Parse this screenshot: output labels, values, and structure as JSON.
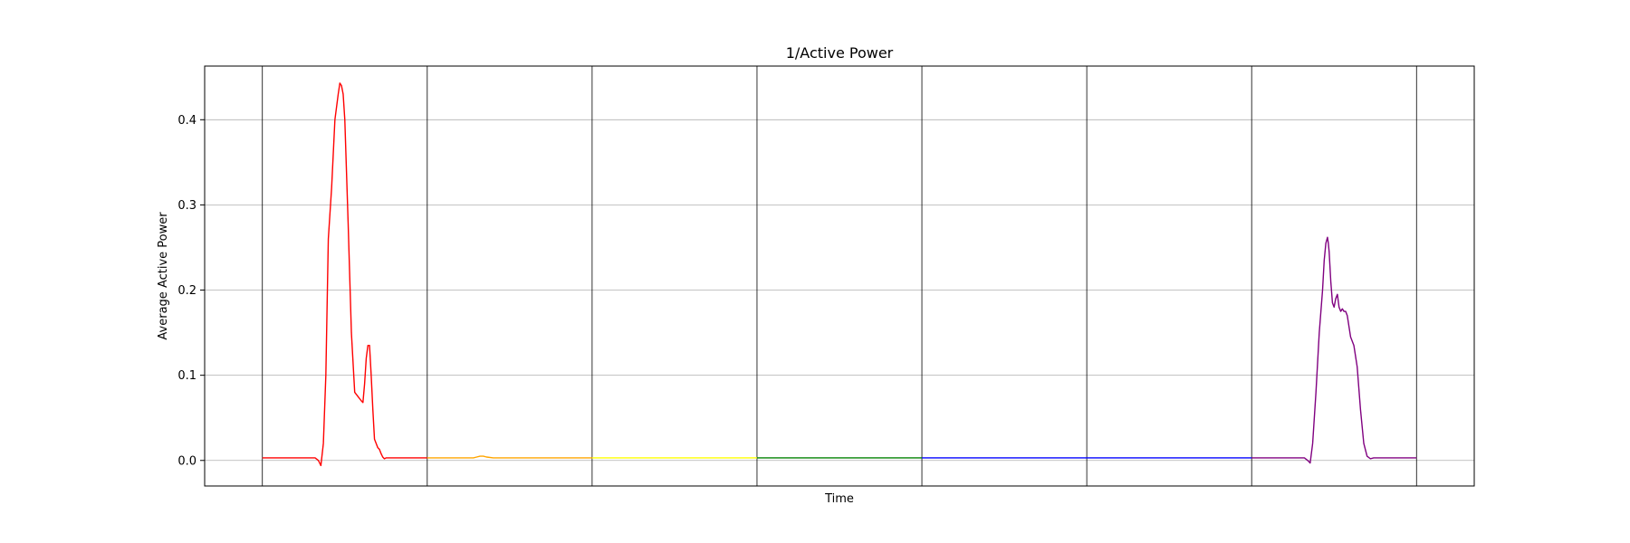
{
  "chart_data": {
    "type": "line",
    "title": "1/Active Power",
    "xlabel": "Time",
    "ylabel": "Average Active Power",
    "ylim": [
      -0.03,
      0.463
    ],
    "yticks": [
      0.0,
      0.1,
      0.2,
      0.3,
      0.4
    ],
    "ytick_labels": [
      "0.0",
      "0.1",
      "0.2",
      "0.3",
      "0.4"
    ],
    "xlim": [
      -0.35,
      7.35
    ],
    "segment_boundaries": [
      0,
      1,
      2,
      3,
      4,
      5,
      6,
      7
    ],
    "grid": true,
    "series": [
      {
        "color": "#ff0000",
        "x": [
          0,
          0.2,
          0.32,
          0.34,
          0.355,
          0.37,
          0.385,
          0.4,
          0.42,
          0.44,
          0.46,
          0.47,
          0.48,
          0.49,
          0.5,
          0.52,
          0.54,
          0.56,
          0.58,
          0.6,
          0.61,
          0.62,
          0.63,
          0.64,
          0.65,
          0.66,
          0.67,
          0.68,
          0.7,
          0.71,
          0.72,
          0.73,
          0.74,
          0.75,
          0.76,
          0.78,
          0.8,
          0.9,
          1.0
        ],
        "y": [
          0.003,
          0.003,
          0.003,
          0.0,
          -0.006,
          0.02,
          0.1,
          0.26,
          0.32,
          0.4,
          0.43,
          0.443,
          0.44,
          0.43,
          0.4,
          0.28,
          0.15,
          0.08,
          0.075,
          0.07,
          0.068,
          0.09,
          0.12,
          0.135,
          0.135,
          0.1,
          0.06,
          0.025,
          0.015,
          0.013,
          0.008,
          0.004,
          0.002,
          0.003,
          0.003,
          0.003,
          0.003,
          0.003,
          0.003
        ]
      },
      {
        "color": "#ffa500",
        "x": [
          1.0,
          1.2,
          1.28,
          1.3,
          1.32,
          1.34,
          1.36,
          1.4,
          1.6,
          1.8,
          2.0
        ],
        "y": [
          0.003,
          0.003,
          0.003,
          0.004,
          0.005,
          0.005,
          0.004,
          0.003,
          0.003,
          0.003,
          0.003
        ]
      },
      {
        "color": "#ffff00",
        "x": [
          2.0,
          2.5,
          3.0
        ],
        "y": [
          0.003,
          0.003,
          0.003
        ]
      },
      {
        "color": "#008000",
        "x": [
          3.0,
          3.5,
          4.0
        ],
        "y": [
          0.003,
          0.003,
          0.003
        ]
      },
      {
        "color": "#0000ff",
        "x": [
          4.0,
          5.0,
          6.0
        ],
        "y": [
          0.003,
          0.003,
          0.003
        ]
      },
      {
        "color": "#800080",
        "x": [
          6.0,
          6.2,
          6.32,
          6.34,
          6.355,
          6.37,
          6.39,
          6.41,
          6.43,
          6.44,
          6.45,
          6.46,
          6.465,
          6.47,
          6.48,
          6.49,
          6.5,
          6.51,
          6.52,
          6.53,
          6.54,
          6.55,
          6.56,
          6.57,
          6.58,
          6.6,
          6.62,
          6.64,
          6.66,
          6.68,
          6.7,
          6.72,
          6.74,
          6.76,
          6.8,
          6.9,
          7.0
        ],
        "y": [
          0.003,
          0.003,
          0.003,
          0.0,
          -0.003,
          0.02,
          0.08,
          0.15,
          0.2,
          0.235,
          0.255,
          0.262,
          0.255,
          0.245,
          0.21,
          0.185,
          0.18,
          0.19,
          0.195,
          0.18,
          0.175,
          0.178,
          0.175,
          0.175,
          0.17,
          0.145,
          0.135,
          0.11,
          0.06,
          0.02,
          0.005,
          0.002,
          0.003,
          0.003,
          0.003,
          0.003,
          0.003
        ]
      }
    ]
  }
}
